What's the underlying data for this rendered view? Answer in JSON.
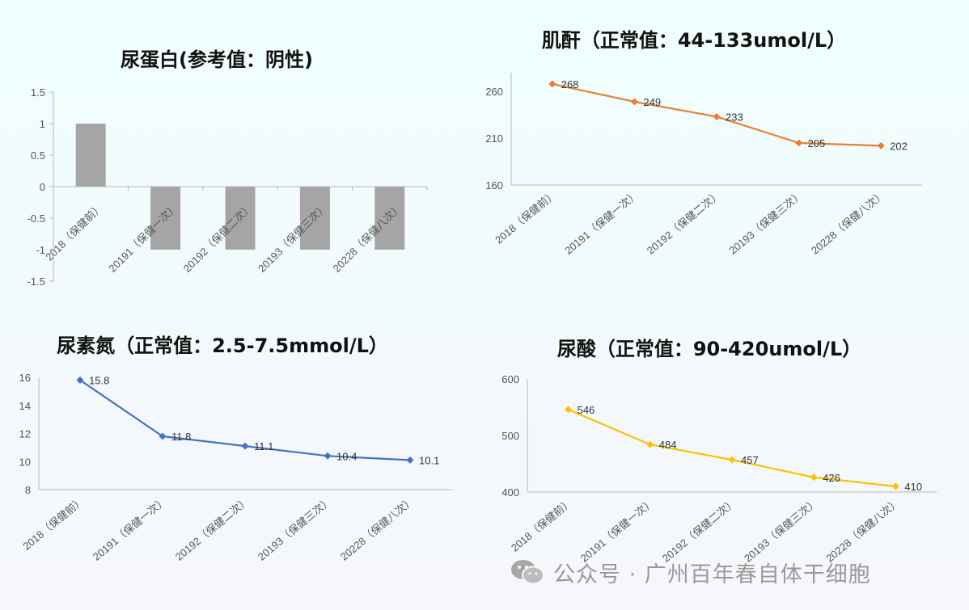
{
  "chart_data": [
    {
      "type": "bar",
      "title": "尿蛋白(参考值：阴性)",
      "categories": [
        "2018（保健前）",
        "20191（保健一次）",
        "20192（保健二次）",
        "20193（保健三次）",
        "20228（保健八次）"
      ],
      "values": [
        1,
        -1,
        -1,
        -1,
        -1
      ],
      "ylim": [
        -1.5,
        1.5
      ],
      "yticks": [
        "1.5",
        "1",
        "0.5",
        "0",
        "-0.5",
        "-1",
        "-1.5"
      ],
      "color": "#a5a5a5",
      "data_labels": false
    },
    {
      "type": "line",
      "title": "肌酐（正常值：44-133umol/L）",
      "categories": [
        "2018（保健前）",
        "20191（保健一次）",
        "20192（保健二次）",
        "20193（保健三次）",
        "20228（保健八次）"
      ],
      "values": [
        268,
        249,
        233,
        205,
        202
      ],
      "ylim": [
        160,
        280
      ],
      "yticks": [
        "260",
        "210",
        "160"
      ],
      "color": "#ed7d31",
      "data_labels": true
    },
    {
      "type": "line",
      "title": "尿素氮（正常值：2.5-7.5mmol/L）",
      "categories": [
        "2018（保健前）",
        "20191（保健一次）",
        "20192（保健二次）",
        "20193（保健三次）",
        "20228（保健八次）"
      ],
      "values": [
        15.8,
        11.8,
        11.1,
        10.4,
        10.1
      ],
      "ylim": [
        8,
        16
      ],
      "yticks": [
        "16",
        "14",
        "12",
        "10",
        "8"
      ],
      "color": "#4472c4",
      "data_labels": true
    },
    {
      "type": "line",
      "title": "尿酸（正常值：90-420umol/L）",
      "categories": [
        "2018（保健前）",
        "20191（保健一次）",
        "20192（保健二次）",
        "20193（保健三次）",
        "20228（保健八次）"
      ],
      "values": [
        546,
        484,
        457,
        426,
        410
      ],
      "ylim": [
        400,
        600
      ],
      "yticks": [
        "600",
        "500",
        "400"
      ],
      "color": "#ffc000",
      "data_labels": true
    }
  ],
  "watermark": {
    "text": "公众号 · 广州百年春自体干细胞",
    "icon": "wechat-icon"
  }
}
